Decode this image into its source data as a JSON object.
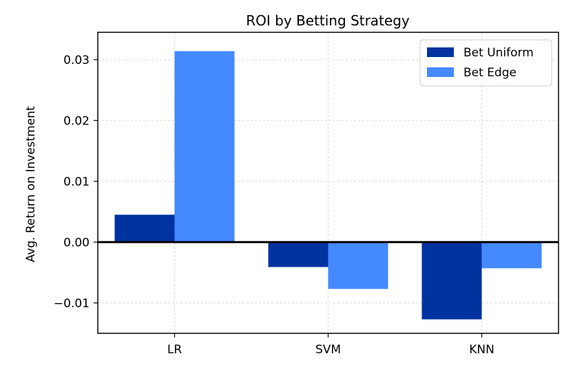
{
  "chart_data": {
    "type": "bar",
    "title": "ROI by Betting Strategy",
    "xlabel": "",
    "ylabel": "Avg. Return on Investment",
    "categories": [
      "LR",
      "SVM",
      "KNN"
    ],
    "series": [
      {
        "name": "Bet Uniform",
        "color": "#0033a0",
        "values": [
          0.0045,
          -0.0041,
          -0.0127
        ]
      },
      {
        "name": "Bet Edge",
        "color": "#4589ff",
        "values": [
          0.0314,
          -0.0077,
          -0.0043
        ]
      }
    ],
    "ylim": [
      -0.015,
      0.0345
    ],
    "yticks": [
      {
        "value": -0.01,
        "label": "−0.01"
      },
      {
        "value": 0.0,
        "label": "0.00"
      },
      {
        "value": 0.01,
        "label": "0.01"
      },
      {
        "value": 0.02,
        "label": "0.02"
      },
      {
        "value": 0.03,
        "label": "0.03"
      }
    ],
    "grid": true,
    "legend_position": "upper right",
    "zero_line": true
  }
}
